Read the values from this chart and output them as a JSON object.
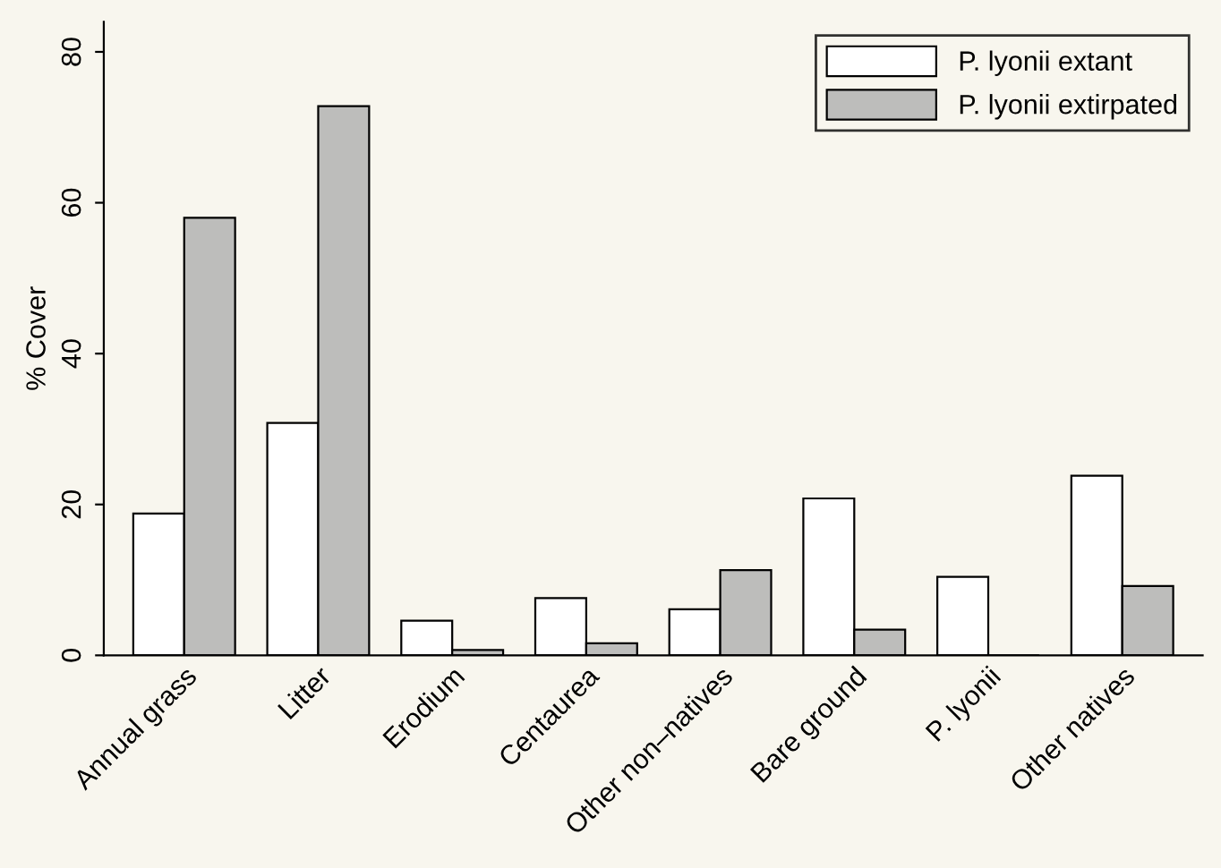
{
  "chart_data": {
    "type": "bar",
    "ylabel": "% Cover",
    "categories": [
      "Annual grass",
      "Litter",
      "Erodium",
      "Centaurea",
      "Other non–natives",
      "Bare ground",
      "P. lyonii",
      "Other natives"
    ],
    "series": [
      {
        "name": "P. lyonii extant",
        "color": "#ffffff",
        "values": [
          18.8,
          30.8,
          4.6,
          7.6,
          6.1,
          20.8,
          10.4,
          23.8
        ]
      },
      {
        "name": "P. lyonii extirpated",
        "color": "#bdbdbb",
        "values": [
          58.0,
          72.8,
          0.7,
          1.6,
          11.3,
          3.4,
          0,
          9.2
        ]
      }
    ],
    "ylim": [
      0,
      84
    ],
    "yticks": [
      0,
      20,
      40,
      60,
      80
    ],
    "grid": false,
    "legend": "top right"
  }
}
